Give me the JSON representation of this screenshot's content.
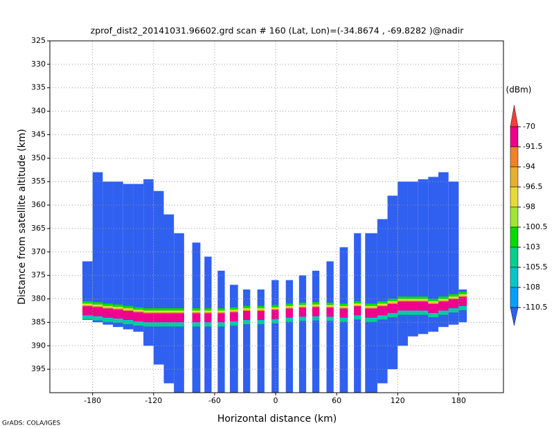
{
  "chart_data": {
    "type": "profile",
    "title": "zprof_dist2_20141031.96602.grd  scan # 160  (Lat, Lon)=(-34.8674 , -69.8282 )@nadir",
    "x_label": "Horizontal distance (km)",
    "y_label": "Distance from satellite altitude (km)",
    "footer": "GrADS: COLA/IGES",
    "xlim": [
      -222,
      224
    ],
    "ylim": [
      325,
      400
    ],
    "y_inverted": true,
    "xticks": [
      -180,
      -120,
      -60,
      0,
      60,
      120,
      180
    ],
    "yticks": [
      325,
      330,
      335,
      340,
      345,
      350,
      355,
      360,
      365,
      370,
      375,
      380,
      385,
      390,
      395
    ],
    "grid": true,
    "colorbar": {
      "unit": "(dBm)",
      "levels": [
        -70,
        -91.5,
        -94,
        -96.5,
        -98,
        -100.5,
        -103,
        -105.5,
        -108,
        -110.5
      ],
      "colors": [
        "#fa3c3c",
        "#f0008c",
        "#f08228",
        "#e6af2d",
        "#e6dc32",
        "#a0e632",
        "#00dc00",
        "#00d28c",
        "#00c8c8",
        "#00a0ff",
        "#3060f0"
      ]
    },
    "columns": [
      {
        "x0": -190,
        "x1": -180,
        "top": 372,
        "bottom": 384.5,
        "band": 382.5
      },
      {
        "x0": -180,
        "x1": -170,
        "top": 353,
        "bottom": 385,
        "band": 382.7
      },
      {
        "x0": -170,
        "x1": -160,
        "top": 355,
        "bottom": 385.5,
        "band": 383
      },
      {
        "x0": -160,
        "x1": -150,
        "top": 355,
        "bottom": 386,
        "band": 383.2
      },
      {
        "x0": -150,
        "x1": -140,
        "top": 355.5,
        "bottom": 386.5,
        "band": 383.5
      },
      {
        "x0": -140,
        "x1": -130,
        "top": 355.5,
        "bottom": 387,
        "band": 383.8
      },
      {
        "x0": -130,
        "x1": -120,
        "top": 354.5,
        "bottom": 390,
        "band": 384
      },
      {
        "x0": -120,
        "x1": -110,
        "top": 357,
        "bottom": 394,
        "band": 384
      },
      {
        "x0": -110,
        "x1": -100,
        "top": 362,
        "bottom": 398,
        "band": 384
      },
      {
        "x0": -100,
        "x1": -90,
        "top": 366,
        "bottom": 400,
        "band": 384
      },
      {
        "x0": -82,
        "x1": -74,
        "top": 368,
        "bottom": 400,
        "band": 384
      },
      {
        "x0": -70,
        "x1": -63,
        "top": 371,
        "bottom": 400,
        "band": 384
      },
      {
        "x0": -57,
        "x1": -50,
        "top": 374,
        "bottom": 400,
        "band": 384
      },
      {
        "x0": -45,
        "x1": -37,
        "top": 377,
        "bottom": 400,
        "band": 383.8
      },
      {
        "x0": -32,
        "x1": -25,
        "top": 378,
        "bottom": 400,
        "band": 383.5
      },
      {
        "x0": -18,
        "x1": -11,
        "top": 378,
        "bottom": 400,
        "band": 383.5
      },
      {
        "x0": -4,
        "x1": 3,
        "top": 376,
        "bottom": 400,
        "band": 383.3
      },
      {
        "x0": 10,
        "x1": 17,
        "top": 376,
        "bottom": 400,
        "band": 383
      },
      {
        "x0": 23,
        "x1": 30,
        "top": 375,
        "bottom": 400,
        "band": 382.8
      },
      {
        "x0": 36,
        "x1": 43,
        "top": 374,
        "bottom": 400,
        "band": 382.7
      },
      {
        "x0": 50,
        "x1": 57,
        "top": 372,
        "bottom": 400,
        "band": 382.8
      },
      {
        "x0": 63,
        "x1": 71,
        "top": 369,
        "bottom": 400,
        "band": 383
      },
      {
        "x0": 77,
        "x1": 84,
        "top": 366,
        "bottom": 400,
        "band": 382.5
      },
      {
        "x0": 88,
        "x1": 100,
        "top": 366,
        "bottom": 400,
        "band": 383
      },
      {
        "x0": 100,
        "x1": 110,
        "top": 363,
        "bottom": 398,
        "band": 382.5
      },
      {
        "x0": 110,
        "x1": 120,
        "top": 358,
        "bottom": 395,
        "band": 382
      },
      {
        "x0": 120,
        "x1": 130,
        "top": 355,
        "bottom": 390,
        "band": 381.5
      },
      {
        "x0": 130,
        "x1": 140,
        "top": 355,
        "bottom": 388,
        "band": 381.5
      },
      {
        "x0": 140,
        "x1": 150,
        "top": 354.5,
        "bottom": 387.5,
        "band": 381.5
      },
      {
        "x0": 150,
        "x1": 160,
        "top": 354,
        "bottom": 387,
        "band": 382
      },
      {
        "x0": 160,
        "x1": 170,
        "top": 353,
        "bottom": 386,
        "band": 381.5
      },
      {
        "x0": 170,
        "x1": 180,
        "top": 355,
        "bottom": 385.5,
        "band": 381
      },
      {
        "x0": 180,
        "x1": 188,
        "top": 378,
        "bottom": 385,
        "band": 380.5
      }
    ]
  }
}
